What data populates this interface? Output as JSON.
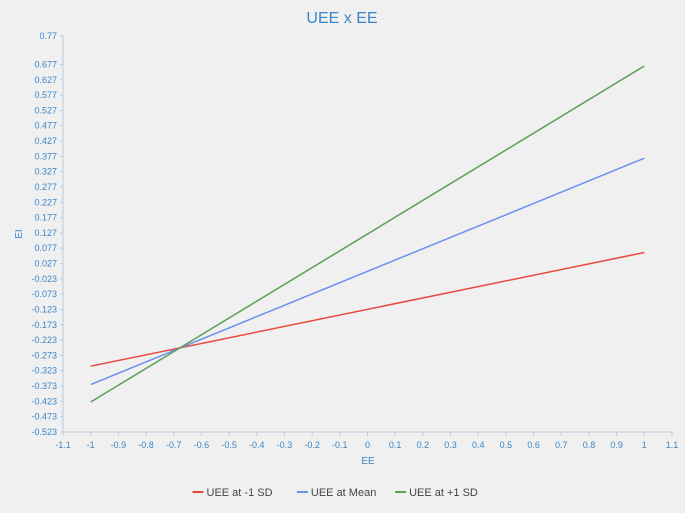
{
  "chart_data": {
    "type": "line",
    "title": "UEE x EE",
    "xlabel": "EE",
    "ylabel": "EI",
    "xlim": [
      -1.1,
      1.1
    ],
    "ylim": [
      -0.523,
      0.77
    ],
    "x_ticks": [
      "-1.1",
      "-1",
      "-0.9",
      "-0.8",
      "-0.7",
      "-0.6",
      "-0.5",
      "-0.4",
      "-0.3",
      "-0.2",
      "-0.1",
      "0",
      "0.1",
      "0.2",
      "0.3",
      "0.4",
      "0.5",
      "0.6",
      "0.7",
      "0.8",
      "0.9",
      "1",
      "1.1"
    ],
    "y_ticks": [
      "0.77",
      "0.677",
      "0.627",
      "0.577",
      "0.527",
      "0.477",
      "0.427",
      "0.377",
      "0.327",
      "0.277",
      "0.227",
      "0.177",
      "0.127",
      "0.077",
      "0.027",
      "-0.023",
      "-0.073",
      "-0.123",
      "-0.173",
      "-0.223",
      "-0.273",
      "-0.323",
      "-0.373",
      "-0.423",
      "-0.473",
      "-0.523"
    ],
    "grid": false,
    "legend_position": "bottom",
    "series": [
      {
        "name": "UEE at -1 SD",
        "color": "#e8493f",
        "x": [
          -1,
          1
        ],
        "y": [
          -0.308,
          0.063
        ]
      },
      {
        "name": "UEE at Mean",
        "color": "#6f8ff0",
        "x": [
          -1,
          1
        ],
        "y": [
          -0.368,
          0.371
        ]
      },
      {
        "name": "UEE at +1 SD",
        "color": "#5d9e58",
        "x": [
          -1,
          1
        ],
        "y": [
          -0.425,
          0.672
        ]
      }
    ]
  }
}
